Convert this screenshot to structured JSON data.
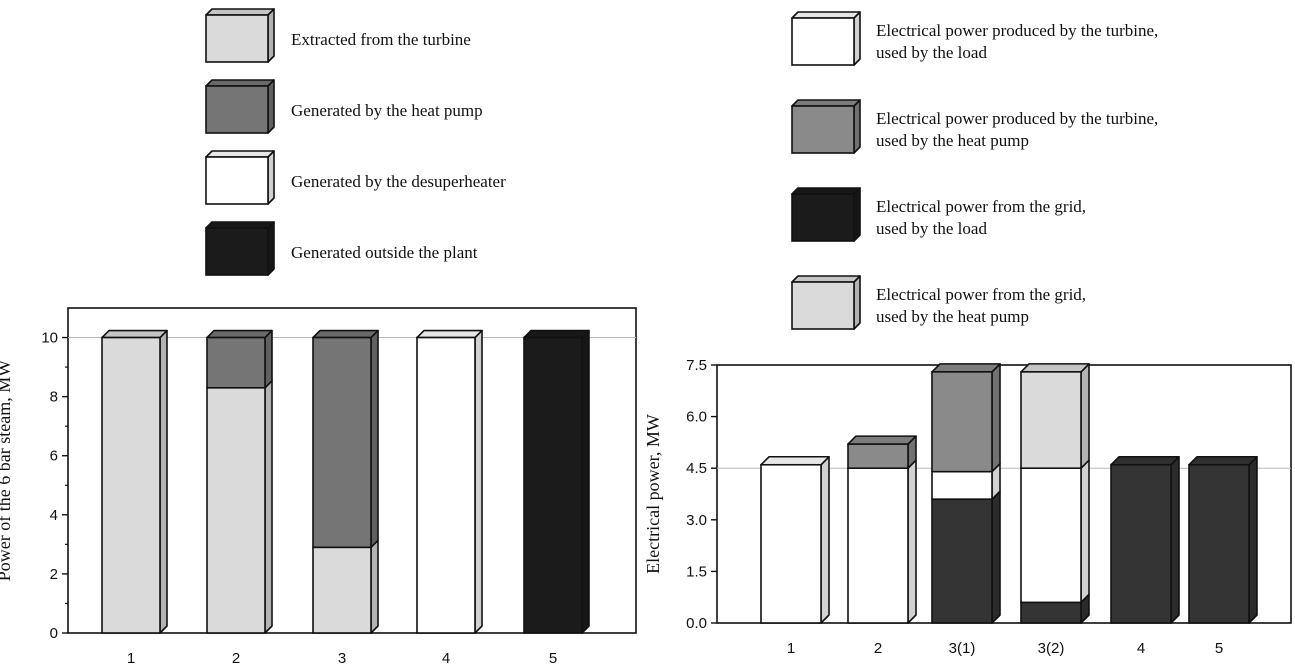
{
  "colors": {
    "light": "#dadada",
    "medium": "#757575",
    "medium2": "#8a8a8a",
    "dark": "#1b1b1b",
    "dark2": "#343434",
    "white": "#ffffff",
    "grid": "#b8b8b8"
  },
  "chart_data": [
    {
      "type": "bar",
      "stacked": true,
      "categories": [
        "1",
        "2",
        "3",
        "4",
        "5"
      ],
      "ylabel": "Power  of the 6 bar steam,  MW",
      "ylim": [
        0,
        11
      ],
      "yticks": [
        0,
        2,
        4,
        6,
        8,
        10
      ],
      "ytick_labels": [
        "0",
        "2",
        "4",
        "6",
        "8",
        "10"
      ],
      "gridlines": [
        10
      ],
      "series": [
        {
          "name": "Extracted from the turbine",
          "color": "light",
          "values": [
            10,
            8.3,
            2.9,
            0,
            0
          ]
        },
        {
          "name": "Generated by the heat pump",
          "color": "medium",
          "values": [
            0,
            1.7,
            7.1,
            0,
            0
          ]
        },
        {
          "name": "Generated by the desuperheater",
          "color": "white",
          "values": [
            0,
            0,
            0,
            10,
            0
          ]
        },
        {
          "name": "Generated outside the plant",
          "color": "dark",
          "values": [
            0,
            0,
            0,
            0,
            10
          ]
        }
      ],
      "legend_position": "top"
    },
    {
      "type": "bar",
      "stacked": true,
      "categories": [
        "1",
        "2",
        "3(1)",
        "3(2)",
        "4",
        "5"
      ],
      "ylabel": "Electrical power, MW",
      "ylim": [
        0,
        7.5
      ],
      "yticks": [
        0,
        1.5,
        3,
        4.5,
        6,
        7.5
      ],
      "ytick_labels": [
        "0.0",
        "1.5",
        "3.0",
        "4.5",
        "6.0",
        "7.5"
      ],
      "gridlines": [
        4.5
      ],
      "series": [
        {
          "name": "Electrical power from the grid, used by the load",
          "color": "dark2",
          "values": [
            0,
            0,
            3.6,
            0.6,
            4.6,
            4.6
          ]
        },
        {
          "name": "Electrical power produced by the turbine, used by the load",
          "color": "white",
          "values": [
            4.6,
            4.5,
            0.8,
            3.9,
            0,
            0
          ]
        },
        {
          "name": "Electrical power produced by the turbine, used by the heat pump",
          "color": "medium2",
          "values": [
            0,
            0.7,
            2.9,
            0,
            0,
            0
          ]
        },
        {
          "name": "Electrical power from the grid, used by the heat pump",
          "color": "light",
          "values": [
            0,
            0,
            0,
            2.8,
            0,
            0
          ]
        }
      ],
      "legend_position": "top"
    }
  ],
  "legends": {
    "left": [
      {
        "lines": [
          "Extracted from the turbine"
        ],
        "color": "light"
      },
      {
        "lines": [
          "Generated by the heat pump"
        ],
        "color": "medium"
      },
      {
        "lines": [
          "Generated by the desuperheater"
        ],
        "color": "white"
      },
      {
        "lines": [
          "Generated outside the plant"
        ],
        "color": "dark"
      }
    ],
    "right": [
      {
        "lines": [
          "Electrical power produced by the turbine,",
          "used by the load"
        ],
        "color": "white"
      },
      {
        "lines": [
          "Electrical power produced by the turbine,",
          "used by the heat pump"
        ],
        "color": "medium2"
      },
      {
        "lines": [
          "Electrical power from the grid,",
          "used by the load"
        ],
        "color": "dark"
      },
      {
        "lines": [
          "Electrical power from the grid,",
          "used by the heat pump"
        ],
        "color": "light"
      }
    ]
  }
}
